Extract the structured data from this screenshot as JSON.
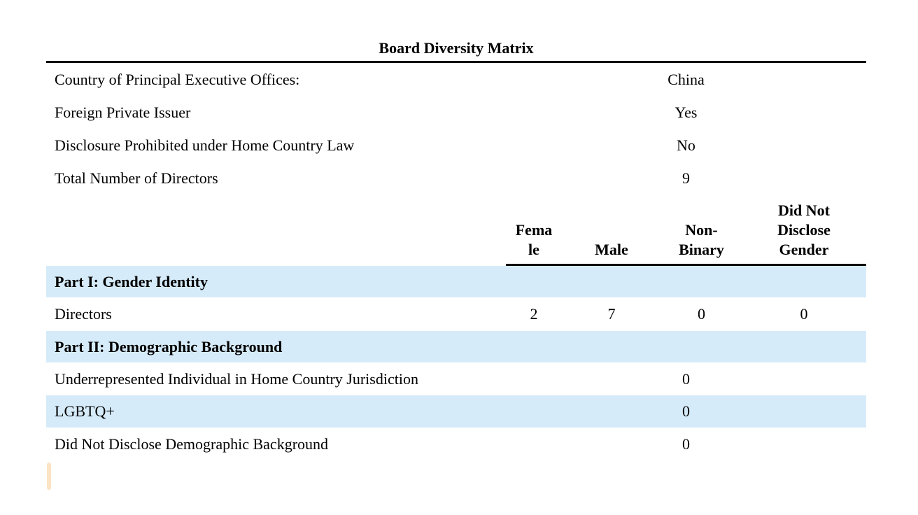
{
  "title": "Board Diversity Matrix",
  "info_rows": [
    {
      "label": "Country of Principal Executive Offices:",
      "value": "China"
    },
    {
      "label": "Foreign Private Issuer",
      "value": "Yes"
    },
    {
      "label": "Disclosure Prohibited under Home Country Law",
      "value": "No"
    },
    {
      "label": "Total Number of Directors",
      "value": "9"
    }
  ],
  "columns": [
    "Female",
    "Male",
    "Non-Binary",
    "Did Not Disclose Gender"
  ],
  "sections": {
    "part1": "Part I: Gender Identity",
    "part2": "Part II: Demographic Background"
  },
  "directors": {
    "label": "Directors",
    "values": [
      "2",
      "7",
      "0",
      "0"
    ]
  },
  "demo_rows": [
    {
      "label": "Underrepresented Individual in Home Country Jurisdiction",
      "value": "0"
    },
    {
      "label": "LGBTQ+",
      "value": "0"
    },
    {
      "label": "Did Not Disclose Demographic Background",
      "value": "0"
    }
  ],
  "colors": {
    "band_blue": "#D6EBF9",
    "rule_black": "#000000",
    "caret_peach": "#FBE3C6"
  }
}
